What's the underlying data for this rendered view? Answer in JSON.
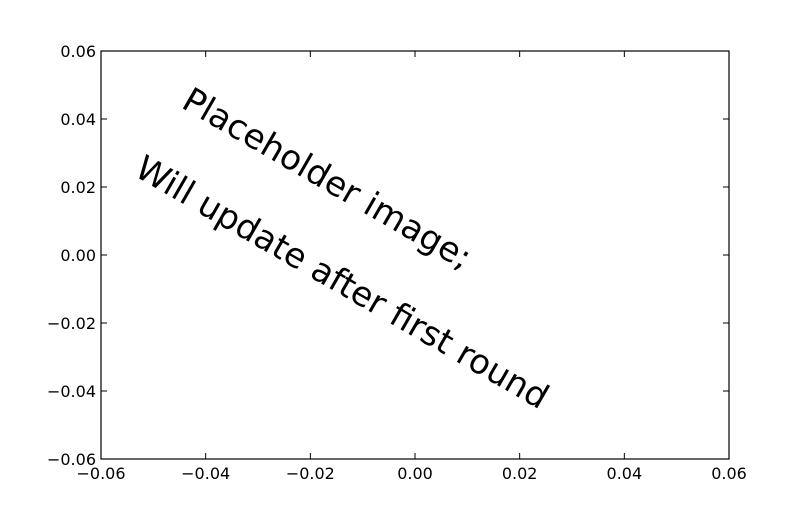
{
  "chart_data": {
    "type": "scatter",
    "title": "",
    "xlabel": "",
    "ylabel": "",
    "xlim": [
      -0.06,
      0.06
    ],
    "ylim": [
      -0.06,
      0.06
    ],
    "grid": false,
    "series": [],
    "x_ticks": [
      {
        "value": -0.06,
        "label": "−0.06"
      },
      {
        "value": -0.04,
        "label": "−0.04"
      },
      {
        "value": -0.02,
        "label": "−0.02"
      },
      {
        "value": 0.0,
        "label": "0.00"
      },
      {
        "value": 0.02,
        "label": "0.02"
      },
      {
        "value": 0.04,
        "label": "0.04"
      },
      {
        "value": 0.06,
        "label": "0.06"
      }
    ],
    "y_ticks": [
      {
        "value": -0.06,
        "label": "−0.06"
      },
      {
        "value": -0.04,
        "label": "−0.04"
      },
      {
        "value": -0.02,
        "label": "−0.02"
      },
      {
        "value": 0.0,
        "label": "0.00"
      },
      {
        "value": 0.02,
        "label": "0.02"
      },
      {
        "value": 0.04,
        "label": "0.04"
      },
      {
        "value": 0.06,
        "label": "0.06"
      }
    ],
    "annotations": [
      {
        "text": "Placeholder image;",
        "x": -0.044,
        "y": 0.046,
        "rotation": 30
      },
      {
        "text": "Will update after first round",
        "x": -0.053,
        "y": 0.026,
        "rotation": 30
      }
    ],
    "colors": {
      "axes": "#000000",
      "text": "#000000",
      "background": "#ffffff"
    }
  }
}
